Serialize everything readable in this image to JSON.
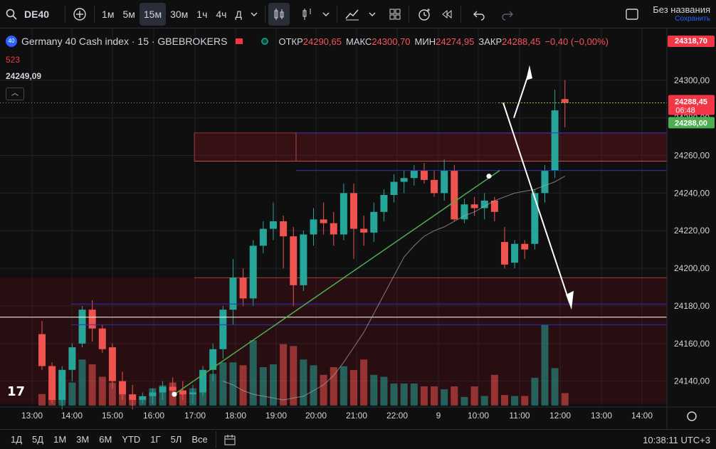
{
  "toolbar": {
    "symbol": "DE40",
    "intervals": [
      "1м",
      "5м",
      "15м",
      "30м",
      "1ч",
      "4ч",
      "Д"
    ],
    "active_interval": "15м",
    "layout_title": "Без названия",
    "layout_saved": "Сохранить"
  },
  "legend": {
    "badge": "40",
    "title": "Germany 40 Cash index · 15 · GBEBROKERS",
    "open_label": "ОТКР",
    "open": "24290,65",
    "high_label": "МАКС",
    "high": "24300,70",
    "low_label": "МИН",
    "low": "24274,95",
    "close_label": "ЗАКР",
    "close": "24288,45",
    "change": "−0,40 (−0,00%)",
    "volume": "523",
    "indicator_value": "24249,09"
  },
  "price_tags": {
    "top": "24318,70",
    "last": "24288,45",
    "countdown": "06:48",
    "green": "24288,00"
  },
  "bottom": {
    "ranges": [
      "1Д",
      "5Д",
      "1М",
      "3М",
      "6М",
      "YTD",
      "1Г",
      "5Л",
      "Все"
    ],
    "clock": "10:38:11 UTC+3"
  },
  "colors": {
    "up": "#26a69a",
    "down": "#ef5350",
    "bg": "#0f0f0f",
    "grid": "#1e222d"
  },
  "chart_data": {
    "type": "candlestick",
    "ylim": [
      24127,
      24323
    ],
    "y_ticks": [
      "24300,00",
      "24280,00",
      "24260,00",
      "24240,00",
      "24220,00",
      "24200,00",
      "24180,00",
      "24160,00",
      "24140,00"
    ],
    "y_tick_values": [
      24300,
      24280,
      24260,
      24240,
      24220,
      24200,
      24180,
      24160,
      24140
    ],
    "x_ticks": [
      "13:00",
      "14:00",
      "15:00",
      "16:00",
      "17:00",
      "18:00",
      "19:00",
      "20:00",
      "21:00",
      "22:00",
      "9",
      "10:00",
      "11:00",
      "12:00",
      "13:00",
      "14:00"
    ],
    "candles": [
      [
        24165,
        24172,
        24146,
        24148
      ],
      [
        24148,
        24150,
        24128,
        24130
      ],
      [
        24130,
        24148,
        24125,
        24146
      ],
      [
        24146,
        24160,
        24140,
        24158
      ],
      [
        24160,
        24180,
        24158,
        24178
      ],
      [
        24178,
        24183,
        24161,
        24168
      ],
      [
        24168,
        24170,
        24155,
        24157
      ],
      [
        24158,
        24160,
        24136,
        24140
      ],
      [
        24140,
        24145,
        24130,
        24133
      ],
      [
        24133,
        24138,
        24125,
        24130
      ],
      [
        24130,
        24134,
        24128,
        24132
      ],
      [
        24132,
        24136,
        24128,
        24134
      ],
      [
        24134,
        24140,
        24130,
        24137
      ],
      [
        24137,
        24142,
        24132,
        24135
      ],
      [
        24135,
        24140,
        24130,
        24133
      ],
      [
        24133,
        24138,
        24128,
        24134
      ],
      [
        24134,
        24148,
        24132,
        24146
      ],
      [
        24146,
        24160,
        24140,
        24157
      ],
      [
        24157,
        24180,
        24152,
        24178
      ],
      [
        24178,
        24205,
        24170,
        24195
      ],
      [
        24195,
        24200,
        24180,
        24184
      ],
      [
        24184,
        24215,
        24180,
        24212
      ],
      [
        24212,
        24225,
        24208,
        24221
      ],
      [
        24221,
        24235,
        24215,
        24225
      ],
      [
        24225,
        24228,
        24200,
        24217
      ],
      [
        24217,
        24222,
        24180,
        24191
      ],
      [
        24191,
        24220,
        24188,
        24218
      ],
      [
        24218,
        24232,
        24212,
        24226
      ],
      [
        24226,
        24235,
        24218,
        24224
      ],
      [
        24224,
        24230,
        24212,
        24218
      ],
      [
        24218,
        24245,
        24215,
        24240
      ],
      [
        24240,
        24245,
        24205,
        24221
      ],
      [
        24221,
        24228,
        24212,
        24219
      ],
      [
        24219,
        24235,
        24214,
        24230
      ],
      [
        24230,
        24242,
        24225,
        24239
      ],
      [
        24239,
        24250,
        24235,
        24246
      ],
      [
        24246,
        24252,
        24240,
        24248
      ],
      [
        24248,
        24255,
        24244,
        24252
      ],
      [
        24252,
        24256,
        24245,
        24247
      ],
      [
        24247,
        24252,
        24238,
        24240
      ],
      [
        24240,
        24258,
        24236,
        24252
      ],
      [
        24252,
        24255,
        24225,
        24226
      ],
      [
        24226,
        24237,
        24224,
        24234
      ],
      [
        24234,
        24238,
        24228,
        24232
      ],
      [
        24232,
        24240,
        24226,
        24236
      ],
      [
        24236,
        24238,
        24225,
        24230
      ],
      [
        24214,
        24222,
        24200,
        24202
      ],
      [
        24203,
        24215,
        24200,
        24213
      ],
      [
        24213,
        24215,
        24205,
        24210
      ],
      [
        24213,
        24242,
        24210,
        24240
      ],
      [
        24240,
        24255,
        24235,
        24252
      ],
      [
        24252,
        24295,
        24248,
        24284
      ],
      [
        24290,
        24300,
        24275,
        24288
      ]
    ],
    "volumes": [
      0.12,
      0.23,
      0.1,
      0.24,
      0.48,
      0.43,
      0.3,
      0.24,
      0.12,
      0.07,
      0.07,
      0.18,
      0.21,
      0.24,
      0.16,
      0.18,
      0.14,
      0.33,
      0.45,
      0.45,
      0.42,
      0.68,
      0.4,
      0.43,
      0.64,
      0.62,
      0.48,
      0.42,
      0.32,
      0.4,
      0.41,
      0.37,
      0.48,
      0.32,
      0.3,
      0.23,
      0.23,
      0.23,
      0.2,
      0.2,
      0.17,
      0.2,
      0.09,
      0.2,
      0.1,
      0.32,
      0.11,
      0.1,
      0.1,
      0.29,
      0.84,
      0.39,
      0.13
    ],
    "zones": [
      {
        "top": 24272,
        "bottom": 24257,
        "label": "resistance"
      },
      {
        "top": 24195,
        "bottom": 24128,
        "label": "support"
      }
    ],
    "hlines": [
      24181,
      24176,
      24170,
      24272,
      24252
    ],
    "white_line": 24174,
    "green_hline": 24288
  }
}
